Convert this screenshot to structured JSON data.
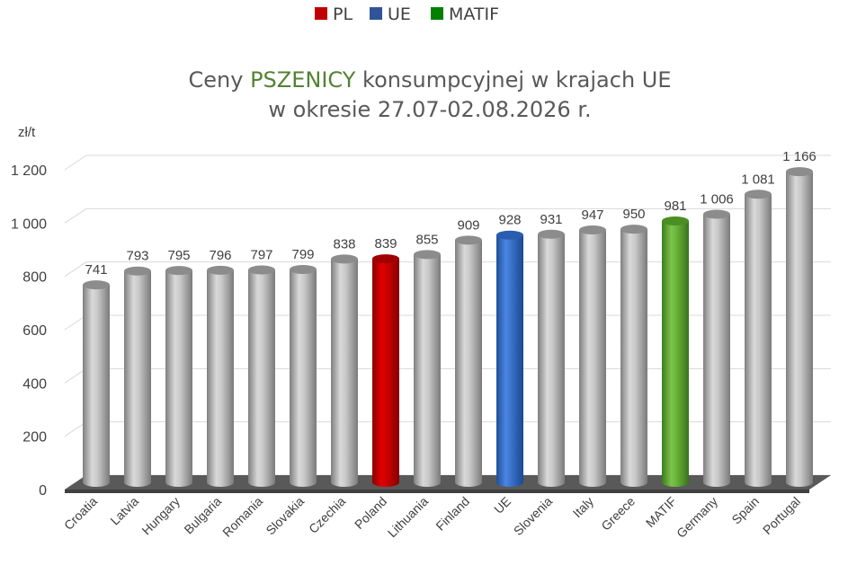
{
  "legend": [
    {
      "label": "PL",
      "color": "#C00000"
    },
    {
      "label": "UE",
      "color": "#2F5597"
    },
    {
      "label": "MATIF",
      "color": "#008000"
    }
  ],
  "title": {
    "line1_pre": "Ceny ",
    "line1_highlight": "PSZENICY",
    "line1_post": " konsumpcyjnej w krajach UE",
    "line2": "w okresie 27.07-02.08.2026 r."
  },
  "colors": {
    "default_bar": "#A6A6A6",
    "PL": "#C00000",
    "UE": "#2E6BD1",
    "MATIF": "#5FA832",
    "title_highlight": "#548235",
    "floor": "#595959"
  },
  "chart_data": {
    "type": "bar",
    "ylabel": "zł/t",
    "ylim": [
      0,
      1200
    ],
    "yticks": [
      0,
      200,
      400,
      600,
      800,
      1000,
      1200
    ],
    "ytick_labels": [
      "0",
      "200",
      "400",
      "600",
      "800",
      "1 000",
      "1 200"
    ],
    "categories": [
      "Croatia",
      "Latvia",
      "Hungary",
      "Bulgaria",
      "Romania",
      "Slovakia",
      "Czechia",
      "Poland",
      "Lithuania",
      "Finland",
      "UE",
      "Slovenia",
      "Italy",
      "Greece",
      "MATIF",
      "Germany",
      "Spain",
      "Portugal"
    ],
    "values": [
      741,
      793,
      795,
      796,
      797,
      799,
      838,
      839,
      855,
      909,
      928,
      931,
      947,
      950,
      981,
      1006,
      1081,
      1166
    ],
    "data_labels": [
      "741",
      "793",
      "795",
      "796",
      "797",
      "799",
      "838",
      "839",
      "855",
      "909",
      "928",
      "931",
      "947",
      "950",
      "981",
      "1 006",
      "1 081",
      "1 166"
    ],
    "highlight": {
      "Poland": "PL",
      "UE": "UE",
      "MATIF": "MATIF"
    },
    "grid": true,
    "legend_position": "top-center"
  }
}
